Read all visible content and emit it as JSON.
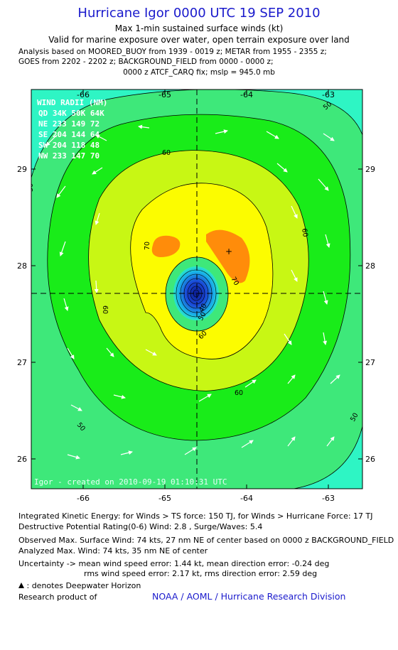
{
  "header": {
    "title": "Hurricane Igor 0000 UTC 19 SEP 2010",
    "subtitle1": "Max 1-min sustained surface winds (kt)",
    "subtitle2": "Valid for marine exposure over water, open terrain exposure over land",
    "analysis_line1": "Analysis based on MOORED_BUOY from 1939 - 0019 z; METAR from 1955 - 2355 z;",
    "analysis_line2": "GOES from 2202 - 2202 z; BACKGROUND_FIELD from 0000 - 0000 z;",
    "analysis_line3": "0000 z ATCF_CARQ fix; mslp = 945.0 mb"
  },
  "map": {
    "x_ticks": [
      "-66",
      "-65",
      "-64",
      "-63"
    ],
    "y_ticks": [
      "29",
      "28",
      "27",
      "26"
    ],
    "center_lon": -64.6,
    "center_lat": 27.7,
    "wind_radii": {
      "title": "WIND RADII (NM)",
      "rows": [
        "QD 34K 50K 64K",
        "NE 233 149  72",
        "SE 204 144  64",
        "SW 204 118  48",
        "NW 233 147  70"
      ]
    },
    "contour_labels": [
      "50",
      "60",
      "60",
      "60",
      "60",
      "70",
      "70",
      "40",
      "50",
      "60",
      "50",
      "50",
      "50"
    ],
    "footer_note": "Igor - created on 2010-09-19 01:10:31 UTC",
    "colors": {
      "cyan": "#2ef5c4",
      "green": "#3ee87a",
      "bright_green": "#19ec19",
      "yellow_green": "#c8f714",
      "yellow": "#fcfc00",
      "orange": "#ff8c0a",
      "core_blue": "#1a3cc8"
    }
  },
  "stats": {
    "ike": "Integrated Kinetic Energy:  for Winds > TS force: 150 TJ,  for Winds > Hurricane Force: 17 TJ",
    "dpr": "Destructive Potential Rating(0-6)   Wind: 2.8 , Surge/Waves: 5.4",
    "observed": "Observed Max. Surface Wind: 74 kts, 27 nm NE of center based on 0000 z BACKGROUND_FIELD",
    "analyzed": "Analyzed Max. Wind: 74 kts, 35 nm NE of center",
    "uncert1": "Uncertainty -> mean wind speed error: 1.44 kt,   mean direction error:  -0.24 deg",
    "uncert2": "rms wind speed error: 2.17 kt,   rms direction error: 2.59 deg",
    "deepwater": ": denotes Deepwater Horizon",
    "research": "Research product of",
    "org": "NOAA / AOML / Hurricane Research Division"
  }
}
